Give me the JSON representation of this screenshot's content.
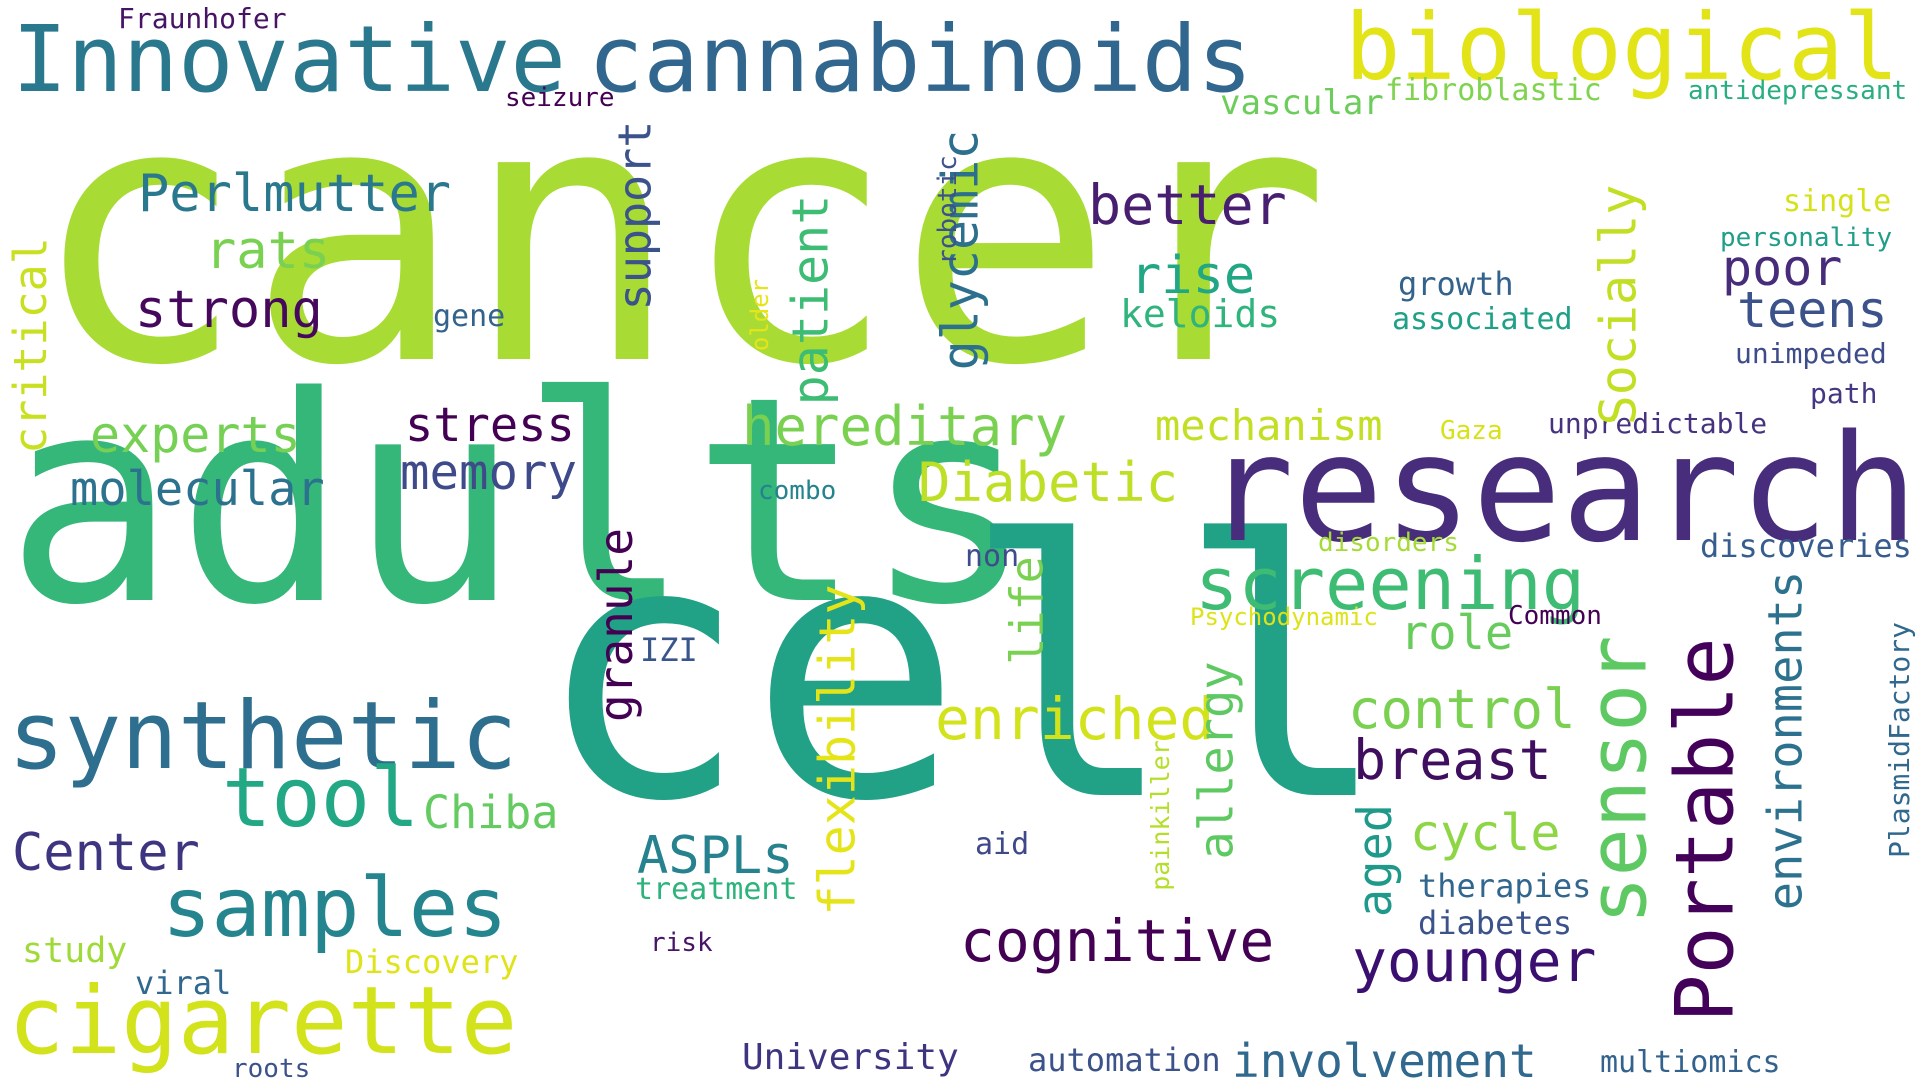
{
  "words": [
    {
      "id": "cancer",
      "text": "cancer",
      "color": "#a8dc34"
    },
    {
      "id": "adults",
      "text": "adults",
      "color": "#35b779"
    },
    {
      "id": "cell",
      "text": "cell",
      "color": "#21a185"
    },
    {
      "id": "research",
      "text": "research",
      "color": "#472d7b"
    },
    {
      "id": "innovative",
      "text": "Innovative",
      "color": "#2a788e"
    },
    {
      "id": "cannabinoids",
      "text": "cannabinoids",
      "color": "#31668e"
    },
    {
      "id": "biological",
      "text": "biological",
      "color": "#e3e418"
    },
    {
      "id": "synthetic",
      "text": "synthetic",
      "color": "#2e6e8e"
    },
    {
      "id": "cigarette",
      "text": "cigarette",
      "color": "#d2e21b"
    },
    {
      "id": "samples",
      "text": "samples",
      "color": "#25858e"
    },
    {
      "id": "tool",
      "text": "tool",
      "color": "#22a884"
    },
    {
      "id": "portable",
      "text": "Portable",
      "color": "#44015a"
    },
    {
      "id": "sensor",
      "text": "sensor",
      "color": "#5ec962"
    },
    {
      "id": "screening",
      "text": "screening",
      "color": "#3fbc73"
    },
    {
      "id": "cognitive",
      "text": "cognitive",
      "color": "#440154"
    },
    {
      "id": "younger",
      "text": "younger",
      "color": "#3b0f70"
    },
    {
      "id": "perlmutter",
      "text": "Perlmutter",
      "color": "#2a788e"
    },
    {
      "id": "rats",
      "text": "rats",
      "color": "#7ad151"
    },
    {
      "id": "strong",
      "text": "strong",
      "color": "#46085c"
    },
    {
      "id": "experts",
      "text": "experts",
      "color": "#75d054"
    },
    {
      "id": "molecular",
      "text": "molecular",
      "color": "#2c728e"
    },
    {
      "id": "stress",
      "text": "stress",
      "color": "#440154"
    },
    {
      "id": "memory",
      "text": "memory",
      "color": "#3e4a89"
    },
    {
      "id": "hereditary",
      "text": "hereditary",
      "color": "#7ad151"
    },
    {
      "id": "mechanism",
      "text": "mechanism",
      "color": "#c2df23"
    },
    {
      "id": "diabetic",
      "text": "Diabetic",
      "color": "#bddf26"
    },
    {
      "id": "better",
      "text": "better",
      "color": "#481f70"
    },
    {
      "id": "rise",
      "text": "rise",
      "color": "#22a785"
    },
    {
      "id": "keloids",
      "text": "keloids",
      "color": "#2fb47c"
    },
    {
      "id": "poor",
      "text": "poor",
      "color": "#472c7a"
    },
    {
      "id": "teens",
      "text": "teens",
      "color": "#3b528b"
    },
    {
      "id": "unimpeded",
      "text": "unimpeded",
      "color": "#3e4c8a"
    },
    {
      "id": "path",
      "text": "path",
      "color": "#453882"
    },
    {
      "id": "unpredictable",
      "text": "unpredictable",
      "color": "#46327e"
    },
    {
      "id": "gaza",
      "text": "Gaza",
      "color": "#d8e219"
    },
    {
      "id": "growth",
      "text": "growth",
      "color": "#33638d"
    },
    {
      "id": "associated",
      "text": "associated",
      "color": "#1fa187"
    },
    {
      "id": "enriched",
      "text": "enriched",
      "color": "#d2e21b"
    },
    {
      "id": "control",
      "text": "control",
      "color": "#7ad151"
    },
    {
      "id": "breast",
      "text": "breast",
      "color": "#3f0e5e"
    },
    {
      "id": "cycle",
      "text": "cycle",
      "color": "#8ed645"
    },
    {
      "id": "role",
      "text": "role",
      "color": "#67cc5c"
    },
    {
      "id": "therapies",
      "text": "therapies",
      "color": "#31668e"
    },
    {
      "id": "diabetes",
      "text": "diabetes",
      "color": "#3b528b"
    },
    {
      "id": "chiba",
      "text": "Chiba",
      "color": "#63cb5f"
    },
    {
      "id": "center",
      "text": "Center",
      "color": "#3e3580"
    },
    {
      "id": "aspls",
      "text": "ASPLs",
      "color": "#26828e"
    },
    {
      "id": "treatment",
      "text": "treatment",
      "color": "#2eb37c"
    },
    {
      "id": "aid",
      "text": "aid",
      "color": "#3e4989"
    },
    {
      "id": "risk",
      "text": "risk",
      "color": "#481467"
    },
    {
      "id": "study",
      "text": "study",
      "color": "#a0da39"
    },
    {
      "id": "discovery",
      "text": "Discovery",
      "color": "#dfe318"
    },
    {
      "id": "viral",
      "text": "viral",
      "color": "#31688e"
    },
    {
      "id": "roots",
      "text": "roots",
      "color": "#3b528b"
    },
    {
      "id": "university",
      "text": "University",
      "color": "#3e3580"
    },
    {
      "id": "automation",
      "text": "automation",
      "color": "#3b528b"
    },
    {
      "id": "involvement",
      "text": "involvement",
      "color": "#31688e"
    },
    {
      "id": "multiomics",
      "text": "multiomics",
      "color": "#33638d"
    },
    {
      "id": "fraunhofer",
      "text": "Fraunhofer",
      "color": "#471365"
    },
    {
      "id": "seizure",
      "text": "seizure",
      "color": "#440154"
    },
    {
      "id": "vascular",
      "text": "vascular",
      "color": "#6ccd5a"
    },
    {
      "id": "fibroblastic",
      "text": "fibroblastic",
      "color": "#7fd34e"
    },
    {
      "id": "antidepressant",
      "text": "antidepressant",
      "color": "#29af7f"
    },
    {
      "id": "single",
      "text": "single",
      "color": "#d5e21a"
    },
    {
      "id": "personality",
      "text": "personality",
      "color": "#1f9e89"
    },
    {
      "id": "gene",
      "text": "gene",
      "color": "#33638d"
    },
    {
      "id": "combo",
      "text": "combo",
      "color": "#25838e"
    },
    {
      "id": "non",
      "text": "non",
      "color": "#3d4d8a"
    },
    {
      "id": "disorders",
      "text": "disorders",
      "color": "#a5db36"
    },
    {
      "id": "psychodynamic",
      "text": "Psychodynamic",
      "color": "#dde318"
    },
    {
      "id": "common",
      "text": "Common",
      "color": "#440154"
    },
    {
      "id": "izi",
      "text": "IZI",
      "color": "#39568c"
    },
    {
      "id": "discoveries",
      "text": "discoveries",
      "color": "#365d8d"
    },
    {
      "id": "critical",
      "text": "critical",
      "color": "#c8e020"
    },
    {
      "id": "support",
      "text": "support",
      "color": "#3b528b"
    },
    {
      "id": "patient",
      "text": "patient",
      "color": "#3dbc74"
    },
    {
      "id": "glycemic",
      "text": "glycemic",
      "color": "#2d708e"
    },
    {
      "id": "robotic",
      "text": "robotic",
      "color": "#3b528b"
    },
    {
      "id": "older",
      "text": "older",
      "color": "#e7e419"
    },
    {
      "id": "socially",
      "text": "Socially",
      "color": "#c2df23"
    },
    {
      "id": "granule",
      "text": "granule",
      "color": "#440154"
    },
    {
      "id": "flexibility",
      "text": "flexibility",
      "color": "#e5e419"
    },
    {
      "id": "life",
      "text": "life",
      "color": "#7ad151"
    },
    {
      "id": "allergy",
      "text": "allergy",
      "color": "#5ec962"
    },
    {
      "id": "aged",
      "text": "aged",
      "color": "#1f9a8a"
    },
    {
      "id": "environments",
      "text": "environments",
      "color": "#2c728e"
    },
    {
      "id": "painkiller",
      "text": "painkiller",
      "color": "#b5de2b"
    },
    {
      "id": "plasmidfactory",
      "text": "PlasmidFactory",
      "color": "#31688e"
    }
  ]
}
